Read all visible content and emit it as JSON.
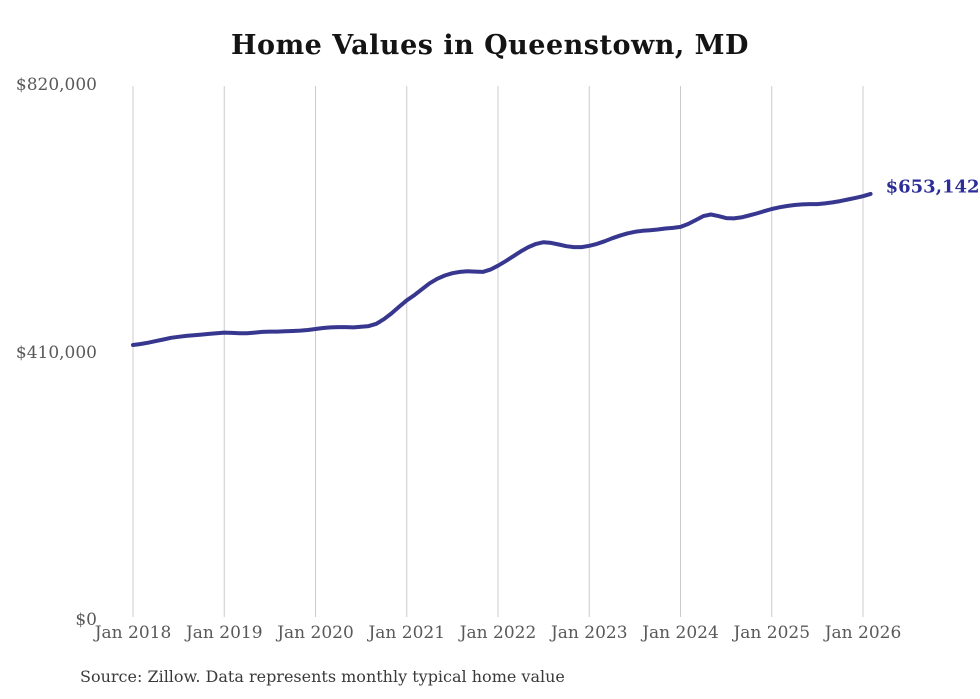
{
  "colors": {
    "line": "#37378f",
    "end_label": "#2d2d99",
    "gridline": "#cccccc",
    "axis_label": "#595959",
    "title": "#141414",
    "source": "#3a3a3a",
    "background": "#ffffff"
  },
  "chart_data": {
    "type": "line",
    "title": "Home Values in Queenstown, MD",
    "source": "Source: Zillow. Data represents monthly typical home value",
    "series_name": "Monthly typical home value",
    "end_label": "$653,142",
    "end_value": 653142,
    "xlabel": "",
    "ylabel": "",
    "ylim": [
      0,
      820000
    ],
    "grid": "vertical-only",
    "legend": false,
    "yticks": [
      {
        "label": "$820,000",
        "value": 820000
      },
      {
        "label": "$410,000",
        "value": 410000
      },
      {
        "label": "$0",
        "value": 0
      }
    ],
    "xticks": [
      "Jan 2018",
      "Jan 2019",
      "Jan 2020",
      "Jan 2021",
      "Jan 2022",
      "Jan 2023",
      "Jan 2024",
      "Jan 2025",
      "Jan 2026"
    ],
    "x": [
      "2018-01",
      "2018-02",
      "2018-03",
      "2018-04",
      "2018-05",
      "2018-06",
      "2018-07",
      "2018-08",
      "2018-09",
      "2018-10",
      "2018-11",
      "2018-12",
      "2019-01",
      "2019-02",
      "2019-03",
      "2019-04",
      "2019-05",
      "2019-06",
      "2019-07",
      "2019-08",
      "2019-09",
      "2019-10",
      "2019-11",
      "2019-12",
      "2020-01",
      "2020-02",
      "2020-03",
      "2020-04",
      "2020-05",
      "2020-06",
      "2020-07",
      "2020-08",
      "2020-09",
      "2020-10",
      "2020-11",
      "2020-12",
      "2021-01",
      "2021-02",
      "2021-03",
      "2021-04",
      "2021-05",
      "2021-06",
      "2021-07",
      "2021-08",
      "2021-09",
      "2021-10",
      "2021-11",
      "2021-12",
      "2022-01",
      "2022-02",
      "2022-03",
      "2022-04",
      "2022-05",
      "2022-06",
      "2022-07",
      "2022-08",
      "2022-09",
      "2022-10",
      "2022-11",
      "2022-12",
      "2023-01",
      "2023-02",
      "2023-03",
      "2023-04",
      "2023-05",
      "2023-06",
      "2023-07",
      "2023-08",
      "2023-09",
      "2023-10",
      "2023-11",
      "2023-12",
      "2024-01",
      "2024-02",
      "2024-03",
      "2024-04",
      "2024-05",
      "2024-06",
      "2024-07",
      "2024-08",
      "2024-09",
      "2024-10",
      "2024-11",
      "2024-12",
      "2025-01",
      "2025-02",
      "2025-03",
      "2025-04",
      "2025-05",
      "2025-06",
      "2025-07",
      "2025-08",
      "2025-09",
      "2025-10",
      "2025-11",
      "2025-12",
      "2026-01",
      "2026-02"
    ],
    "values": [
      421500,
      423000,
      425000,
      427500,
      430000,
      432500,
      434000,
      435500,
      436500,
      437500,
      438500,
      439500,
      440500,
      440000,
      439500,
      439500,
      440500,
      441500,
      442000,
      442000,
      442500,
      443000,
      443500,
      444500,
      446000,
      447500,
      448500,
      449000,
      449000,
      448500,
      449500,
      450500,
      454000,
      461000,
      470000,
      480000,
      490000,
      498000,
      507000,
      516000,
      523000,
      528000,
      531500,
      533500,
      534500,
      534000,
      533500,
      537000,
      543000,
      550000,
      557500,
      565000,
      571500,
      576500,
      579000,
      578000,
      575500,
      573000,
      571500,
      571500,
      573500,
      576500,
      580500,
      585000,
      589000,
      592500,
      595000,
      596500,
      597500,
      598500,
      600000,
      601000,
      602500,
      607000,
      613000,
      619000,
      621500,
      619000,
      616000,
      615500,
      617000,
      620000,
      623000,
      626500,
      630000,
      632500,
      634500,
      636000,
      637000,
      637500,
      637500,
      638500,
      640000,
      642000,
      644500,
      647000,
      649500,
      653142
    ]
  }
}
